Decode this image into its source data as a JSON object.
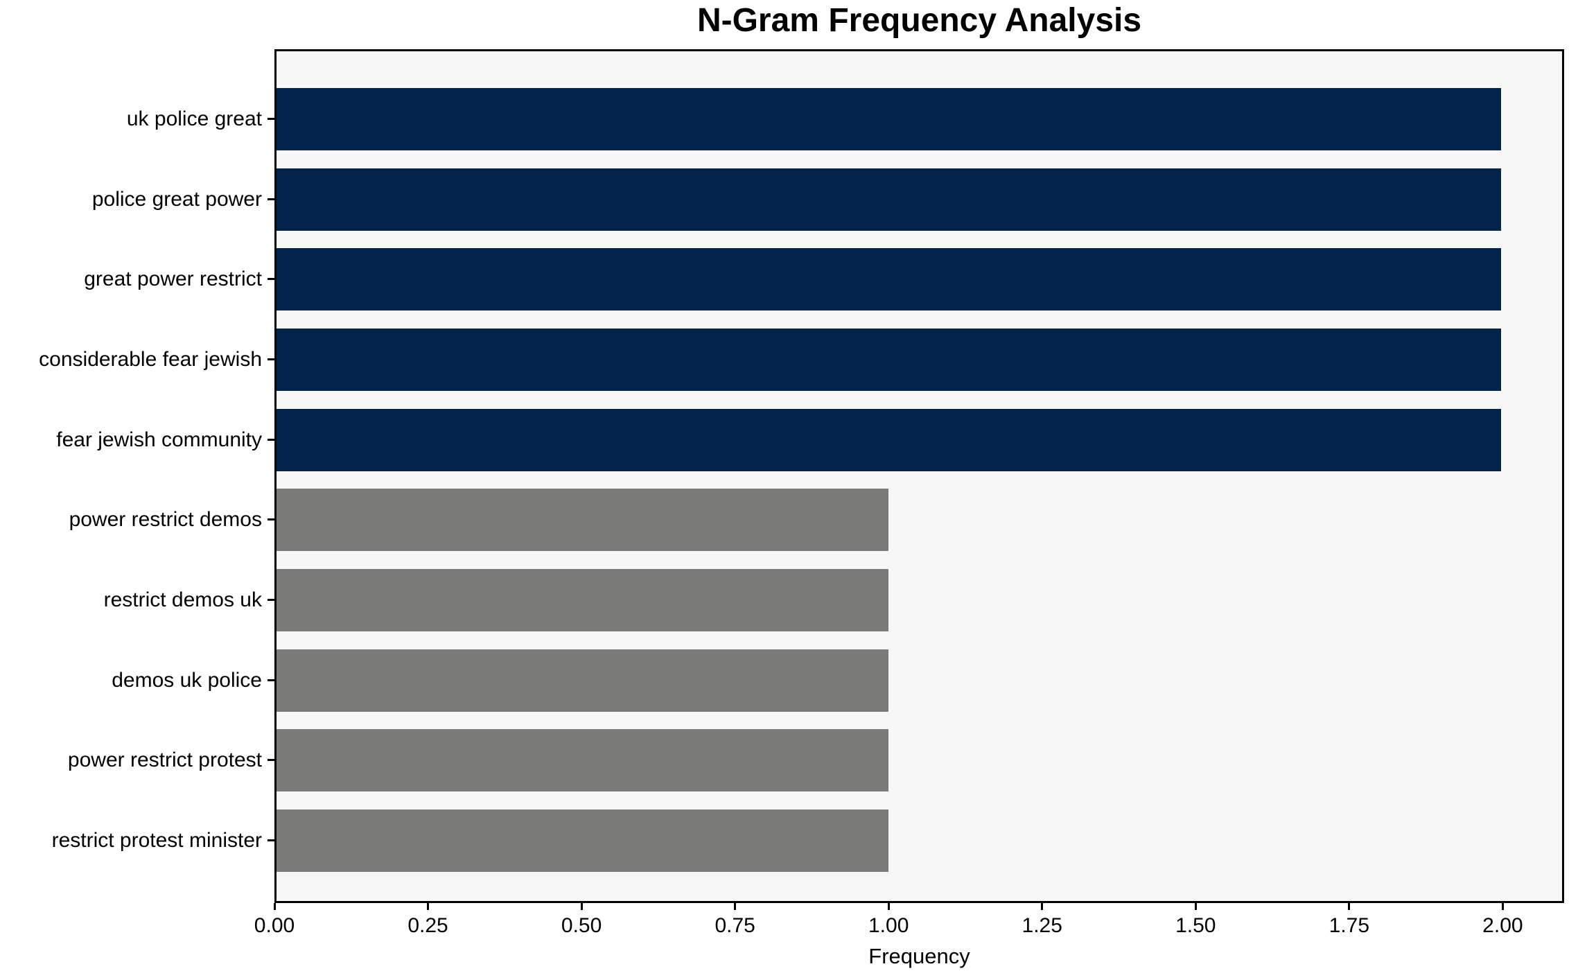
{
  "title": "N-Gram Frequency Analysis",
  "chart_data": {
    "type": "bar",
    "orientation": "horizontal",
    "title": "N-Gram Frequency Analysis",
    "xlabel": "Frequency",
    "ylabel": "",
    "grid": false,
    "legend": null,
    "plot_background": "#f7f7f7",
    "figure_background": "#ffffff",
    "spine_color": "#000000",
    "xlim": [
      0,
      2.1
    ],
    "xticks": [
      0.0,
      0.25,
      0.5,
      0.75,
      1.0,
      1.25,
      1.5,
      1.75,
      2.0
    ],
    "xtick_labels": [
      "0.00",
      "0.25",
      "0.50",
      "0.75",
      "1.00",
      "1.25",
      "1.50",
      "1.75",
      "2.00"
    ],
    "categories": [
      "uk police great",
      "police great power",
      "great power restrict",
      "considerable fear jewish",
      "fear jewish community",
      "power restrict demos",
      "restrict demos uk",
      "demos uk police",
      "power restrict protest",
      "restrict protest minister"
    ],
    "values": [
      2,
      2,
      2,
      2,
      2,
      1,
      1,
      1,
      1,
      1
    ],
    "bar_colors": [
      "#032449",
      "#032449",
      "#032449",
      "#032449",
      "#032449",
      "#7a7a78",
      "#7a7a78",
      "#7a7a78",
      "#7a7a78",
      "#7a7a78"
    ],
    "highlight_color": "#032449",
    "muted_color": "#7a7a78"
  }
}
